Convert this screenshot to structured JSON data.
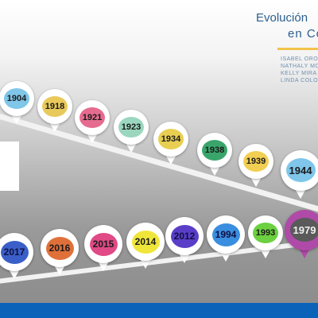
{
  "title": {
    "line1": "Evolución",
    "line2": "en Co"
  },
  "authors": [
    "ISABEL ORO",
    "NATHALY MO",
    "KELLY MIRA",
    "LINDA COLO"
  ],
  "colors": {
    "band": "#f2f2f2",
    "bottom_bar": "#0a63b8",
    "accent_rule": "#f3c34a",
    "title_text": "#2b5f8f"
  },
  "timeline_top": [
    {
      "year": "1904",
      "color": "#7fc6e8"
    },
    {
      "year": "1918",
      "color": "#e8c95a"
    },
    {
      "year": "1921",
      "color": "#e56b8f"
    },
    {
      "year": "1923",
      "color": "#9bd6be"
    },
    {
      "year": "1934",
      "color": "#e8cf52"
    },
    {
      "year": "1938",
      "color": "#3aa56b"
    },
    {
      "year": "1939",
      "color": "#f1cf52"
    },
    {
      "year": "1944",
      "color": "#7fc6ea"
    }
  ],
  "timeline_bottom": [
    {
      "year": "2017",
      "color": "#3a5fc8"
    },
    {
      "year": "2016",
      "color": "#e0703a"
    },
    {
      "year": "2015",
      "color": "#e04a86"
    },
    {
      "year": "2014",
      "color": "#f0e63a"
    },
    {
      "year": "2012",
      "color": "#5a3ec8"
    },
    {
      "year": "1994",
      "color": "#3a8ee0"
    },
    {
      "year": "1993",
      "color": "#6cd040"
    },
    {
      "year": "1979",
      "color": "#5a5a5a"
    }
  ]
}
